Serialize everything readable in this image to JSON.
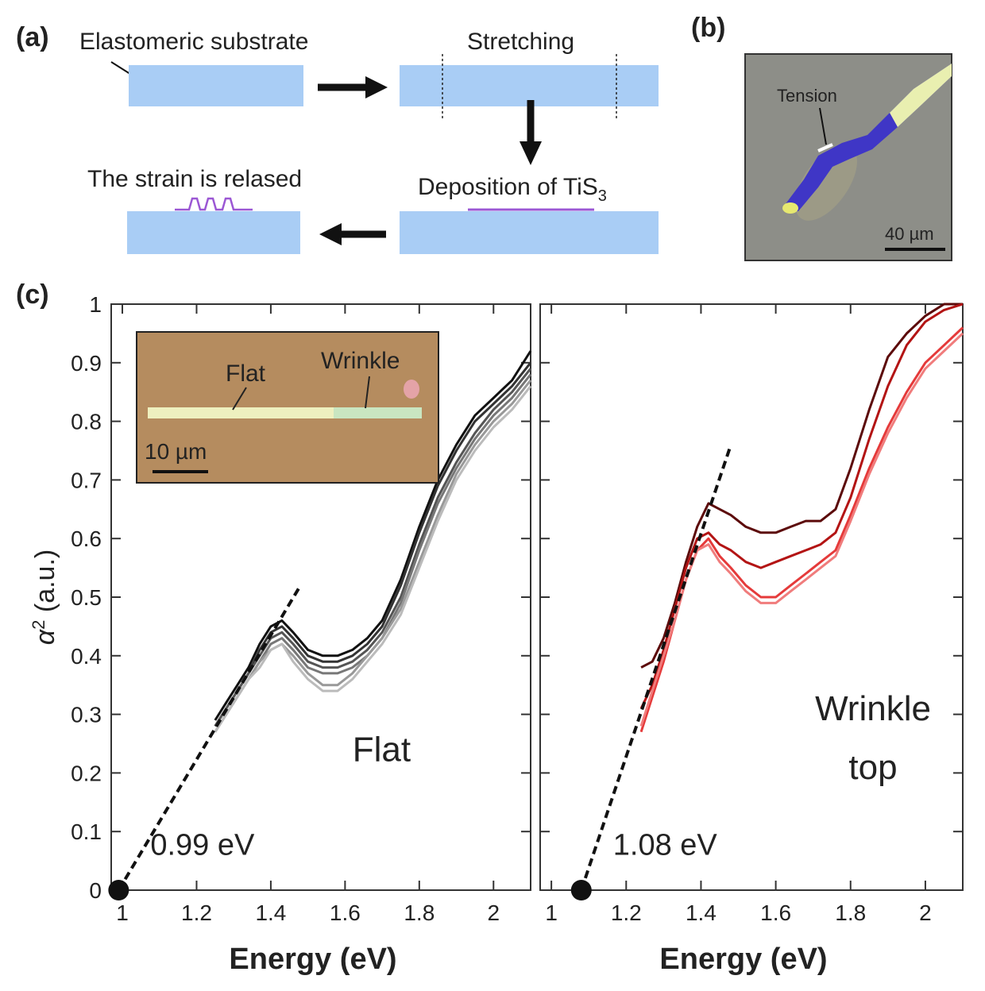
{
  "panel_a": {
    "label": "(a)",
    "substrate_label": "Elastomeric substrate",
    "stretching_label": "Stretching",
    "deposition_label": "Deposition of TiS",
    "deposition_subscript": "3",
    "release_label": "The strain is relased",
    "colors": {
      "substrate": "#a9cdf5",
      "film": "#9b57d4"
    }
  },
  "panel_b": {
    "label": "(b)",
    "tension_label": "Tension",
    "scale_label": "40 µm"
  },
  "panel_c": {
    "label": "(c)",
    "inset": {
      "flat_label": "Flat",
      "wrinkle_label": "Wrinkle",
      "scale_label": "10 µm"
    },
    "ylabel": "α",
    "ylabel_sup": "2",
    "ylabel_unit": "(a.u.)"
  },
  "chart_data": [
    {
      "type": "line",
      "xlabel": "Energy (eV)",
      "xlim": [
        0.97,
        2.1
      ],
      "ylim": [
        0,
        1
      ],
      "xticks": [
        1,
        1.2,
        1.4,
        1.6,
        1.8,
        2
      ],
      "xtick_labels": [
        "1",
        "1.2",
        "1.4",
        "1.6",
        "1.8",
        "2"
      ],
      "yticks": [
        0,
        0.1,
        0.2,
        0.3,
        0.4,
        0.5,
        0.6,
        0.7,
        0.8,
        0.9,
        1
      ],
      "ytick_labels": [
        "0",
        "0.1",
        "0.2",
        "0.3",
        "0.4",
        "0.5",
        "0.6",
        "0.7",
        "0.8",
        "0.9",
        "1"
      ],
      "annotation_text": "Flat",
      "gap_label": "0.99 eV",
      "gap_point": [
        0.99,
        0
      ],
      "fit_line": {
        "x": [
          0.99,
          1.48
        ],
        "y": [
          0,
          0.52
        ]
      },
      "series": [
        {
          "color": "#111111",
          "x": [
            1.25,
            1.28,
            1.31,
            1.34,
            1.37,
            1.4,
            1.43,
            1.46,
            1.5,
            1.54,
            1.58,
            1.62,
            1.66,
            1.7,
            1.75,
            1.8,
            1.85,
            1.9,
            1.95,
            2.0,
            2.05,
            2.1
          ],
          "y": [
            0.29,
            0.32,
            0.35,
            0.38,
            0.42,
            0.45,
            0.46,
            0.44,
            0.41,
            0.4,
            0.4,
            0.41,
            0.43,
            0.46,
            0.53,
            0.62,
            0.7,
            0.76,
            0.81,
            0.84,
            0.87,
            0.92
          ]
        },
        {
          "color": "#333333",
          "x": [
            1.25,
            1.28,
            1.31,
            1.34,
            1.37,
            1.4,
            1.43,
            1.46,
            1.5,
            1.54,
            1.58,
            1.62,
            1.66,
            1.7,
            1.75,
            1.8,
            1.85,
            1.9,
            1.95,
            2.0,
            2.05,
            2.1
          ],
          "y": [
            0.28,
            0.31,
            0.34,
            0.37,
            0.41,
            0.44,
            0.45,
            0.43,
            0.4,
            0.39,
            0.39,
            0.4,
            0.42,
            0.45,
            0.52,
            0.61,
            0.69,
            0.75,
            0.8,
            0.83,
            0.86,
            0.9
          ]
        },
        {
          "color": "#555555",
          "x": [
            1.25,
            1.28,
            1.31,
            1.34,
            1.37,
            1.4,
            1.43,
            1.46,
            1.5,
            1.54,
            1.58,
            1.62,
            1.66,
            1.7,
            1.75,
            1.8,
            1.85,
            1.9,
            1.95,
            2.0,
            2.05,
            2.1
          ],
          "y": [
            0.28,
            0.31,
            0.34,
            0.37,
            0.4,
            0.43,
            0.44,
            0.42,
            0.39,
            0.38,
            0.38,
            0.39,
            0.41,
            0.44,
            0.5,
            0.59,
            0.67,
            0.73,
            0.78,
            0.82,
            0.85,
            0.89
          ]
        },
        {
          "color": "#777777",
          "x": [
            1.25,
            1.28,
            1.31,
            1.34,
            1.37,
            1.4,
            1.43,
            1.46,
            1.5,
            1.54,
            1.58,
            1.62,
            1.66,
            1.7,
            1.75,
            1.8,
            1.85,
            1.9,
            1.95,
            2.0,
            2.05,
            2.1
          ],
          "y": [
            0.27,
            0.3,
            0.33,
            0.36,
            0.39,
            0.42,
            0.43,
            0.41,
            0.38,
            0.37,
            0.37,
            0.38,
            0.4,
            0.43,
            0.49,
            0.58,
            0.66,
            0.72,
            0.77,
            0.81,
            0.84,
            0.88
          ]
        },
        {
          "color": "#999999",
          "x": [
            1.25,
            1.28,
            1.31,
            1.34,
            1.37,
            1.4,
            1.43,
            1.46,
            1.5,
            1.54,
            1.58,
            1.62,
            1.66,
            1.7,
            1.75,
            1.8,
            1.85,
            1.9,
            1.95,
            2.0,
            2.05,
            2.1
          ],
          "y": [
            0.27,
            0.3,
            0.33,
            0.36,
            0.39,
            0.41,
            0.42,
            0.4,
            0.37,
            0.35,
            0.35,
            0.37,
            0.4,
            0.43,
            0.48,
            0.56,
            0.64,
            0.71,
            0.76,
            0.8,
            0.83,
            0.87
          ]
        },
        {
          "color": "#bbbbbb",
          "x": [
            1.25,
            1.28,
            1.31,
            1.34,
            1.37,
            1.4,
            1.43,
            1.46,
            1.5,
            1.54,
            1.58,
            1.62,
            1.66,
            1.7,
            1.75,
            1.8,
            1.85,
            1.9,
            1.95,
            2.0,
            2.05,
            2.1
          ],
          "y": [
            0.27,
            0.3,
            0.33,
            0.36,
            0.38,
            0.41,
            0.42,
            0.39,
            0.36,
            0.34,
            0.34,
            0.36,
            0.39,
            0.42,
            0.47,
            0.55,
            0.63,
            0.7,
            0.75,
            0.79,
            0.82,
            0.86
          ]
        }
      ]
    },
    {
      "type": "line",
      "xlabel": "Energy (eV)",
      "xlim": [
        0.97,
        2.1
      ],
      "ylim": [
        0,
        1
      ],
      "xticks": [
        1,
        1.2,
        1.4,
        1.6,
        1.8,
        2
      ],
      "xtick_labels": [
        "1",
        "1.2",
        "1.4",
        "1.6",
        "1.8",
        "2"
      ],
      "annotation_text": "Wrinkle",
      "annotation_text_2": "top",
      "gap_label": "1.08 eV",
      "gap_point": [
        1.08,
        0
      ],
      "fit_line": {
        "x": [
          1.08,
          1.48
        ],
        "y": [
          0,
          0.76
        ]
      },
      "series": [
        {
          "color": "#5c0a0a",
          "x": [
            1.24,
            1.27,
            1.3,
            1.33,
            1.36,
            1.39,
            1.42,
            1.45,
            1.48,
            1.52,
            1.56,
            1.6,
            1.64,
            1.68,
            1.72,
            1.76,
            1.8,
            1.85,
            1.9,
            1.95,
            2.0,
            2.05,
            2.1
          ],
          "y": [
            0.38,
            0.39,
            0.43,
            0.49,
            0.56,
            0.62,
            0.66,
            0.65,
            0.64,
            0.62,
            0.61,
            0.61,
            0.62,
            0.63,
            0.63,
            0.65,
            0.72,
            0.82,
            0.91,
            0.95,
            0.98,
            1.0,
            1.0
          ]
        },
        {
          "color": "#b31414",
          "x": [
            1.24,
            1.27,
            1.3,
            1.33,
            1.36,
            1.39,
            1.42,
            1.45,
            1.48,
            1.52,
            1.56,
            1.6,
            1.64,
            1.68,
            1.72,
            1.76,
            1.8,
            1.85,
            1.9,
            1.95,
            2.0,
            2.05,
            2.1
          ],
          "y": [
            0.31,
            0.35,
            0.41,
            0.48,
            0.55,
            0.6,
            0.61,
            0.59,
            0.58,
            0.56,
            0.55,
            0.56,
            0.57,
            0.58,
            0.59,
            0.61,
            0.67,
            0.77,
            0.86,
            0.93,
            0.97,
            0.99,
            1.0
          ]
        },
        {
          "color": "#e53a3a",
          "x": [
            1.24,
            1.27,
            1.3,
            1.33,
            1.36,
            1.39,
            1.42,
            1.45,
            1.48,
            1.52,
            1.56,
            1.6,
            1.64,
            1.68,
            1.72,
            1.76,
            1.8,
            1.85,
            1.9,
            1.95,
            2.0,
            2.05,
            2.1
          ],
          "y": [
            0.27,
            0.33,
            0.39,
            0.46,
            0.53,
            0.58,
            0.6,
            0.57,
            0.55,
            0.52,
            0.5,
            0.5,
            0.52,
            0.54,
            0.56,
            0.58,
            0.64,
            0.72,
            0.79,
            0.85,
            0.9,
            0.93,
            0.96
          ]
        },
        {
          "color": "#f07c7c",
          "x": [
            1.24,
            1.27,
            1.3,
            1.33,
            1.36,
            1.39,
            1.42,
            1.45,
            1.48,
            1.52,
            1.56,
            1.6,
            1.64,
            1.68,
            1.72,
            1.76,
            1.8,
            1.85,
            1.9,
            1.95,
            2.0,
            2.05,
            2.1
          ],
          "y": [
            0.28,
            0.34,
            0.4,
            0.46,
            0.53,
            0.58,
            0.59,
            0.56,
            0.54,
            0.51,
            0.49,
            0.49,
            0.51,
            0.53,
            0.55,
            0.57,
            0.63,
            0.71,
            0.78,
            0.84,
            0.89,
            0.92,
            0.95
          ]
        }
      ]
    }
  ]
}
